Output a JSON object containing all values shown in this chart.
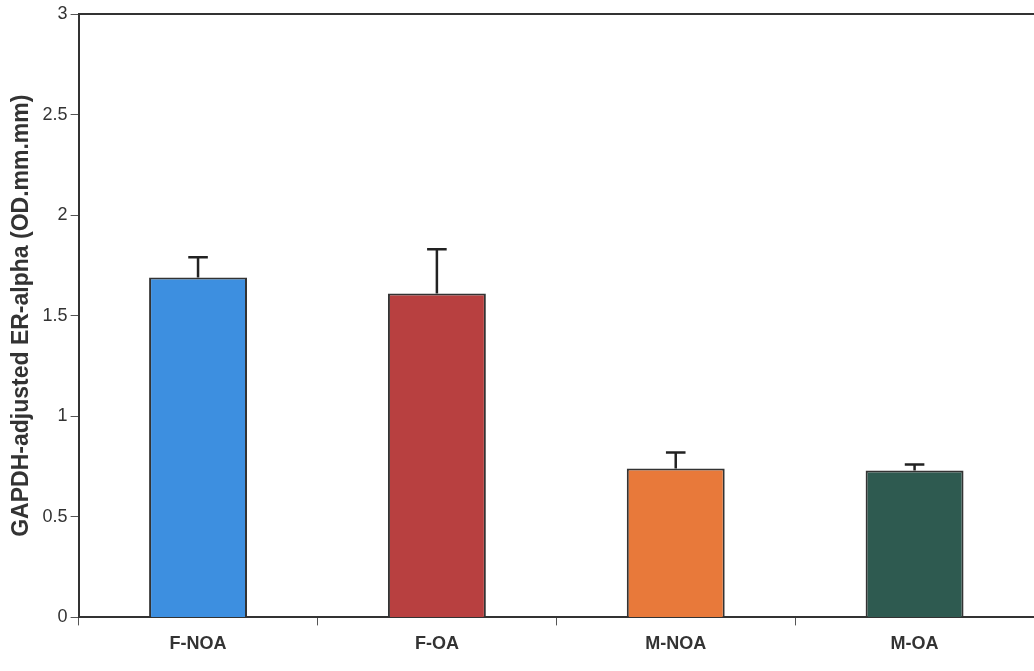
{
  "chart_data": {
    "type": "bar",
    "ylabel": "GAPDH-adjusted ER-alpha (OD.mm.mm)",
    "categories": [
      "F-NOA",
      "F-OA",
      "M-NOA",
      "M-OA"
    ],
    "values": [
      1.69,
      1.61,
      0.74,
      0.73
    ],
    "colors": [
      "#3d8fe0",
      "#b84040",
      "#e8793a",
      "#2e5a50"
    ],
    "errors": [
      [
        1.69,
        1.79
      ],
      [
        1.61,
        1.83
      ],
      [
        0.74,
        0.82
      ],
      [
        0.73,
        0.76
      ]
    ],
    "ylim": [
      0,
      3
    ],
    "yticks": [
      0,
      0.5,
      1,
      1.5,
      2,
      2.5,
      3
    ],
    "grid": false,
    "legend": false
  }
}
